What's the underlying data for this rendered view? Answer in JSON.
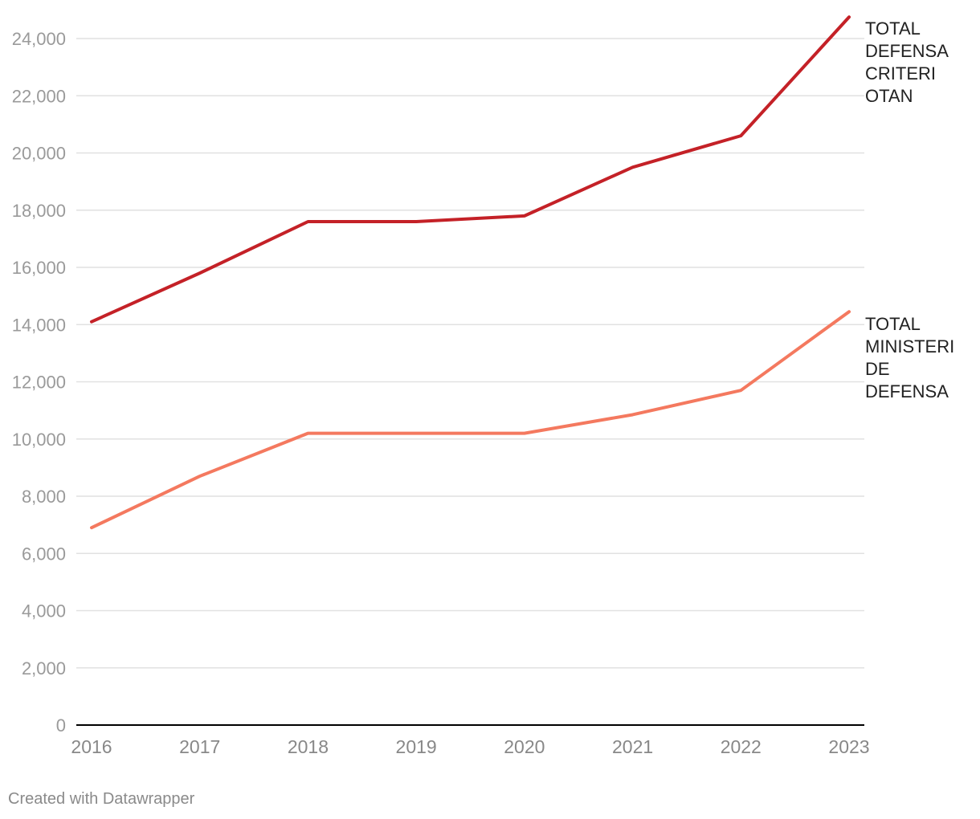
{
  "chart_data": {
    "type": "line",
    "title": "",
    "xlabel": "",
    "ylabel": "",
    "categories": [
      "2016",
      "2017",
      "2018",
      "2019",
      "2020",
      "2021",
      "2022",
      "2023"
    ],
    "ylim": [
      0,
      25000
    ],
    "yticks": [
      0,
      2000,
      4000,
      6000,
      8000,
      10000,
      12000,
      14000,
      16000,
      18000,
      20000,
      22000,
      24000
    ],
    "ytick_labels": [
      "0",
      "2,000",
      "4,000",
      "6,000",
      "8,000",
      "10,000",
      "12,000",
      "14,000",
      "16,000",
      "18,000",
      "20,000",
      "22,000",
      "24,000"
    ],
    "grid": true,
    "legend": "inline-right",
    "series": [
      {
        "name": "TOTAL DEFENSA CRITERI OTAN",
        "label_lines": [
          "TOTAL",
          "DEFENSA",
          "CRITERI",
          "OTAN"
        ],
        "color": "#c42127",
        "values": [
          14100,
          15800,
          17600,
          17600,
          17800,
          19500,
          20600,
          24750
        ]
      },
      {
        "name": "TOTAL MINISTERI DE DEFENSA",
        "label_lines": [
          "TOTAL",
          "MINISTERI",
          "DE",
          "DEFENSA"
        ],
        "color": "#f4795f",
        "values": [
          6900,
          8700,
          10200,
          10200,
          10200,
          10850,
          11700,
          14450
        ]
      }
    ]
  },
  "footer": {
    "credit": "Created with Datawrapper"
  }
}
